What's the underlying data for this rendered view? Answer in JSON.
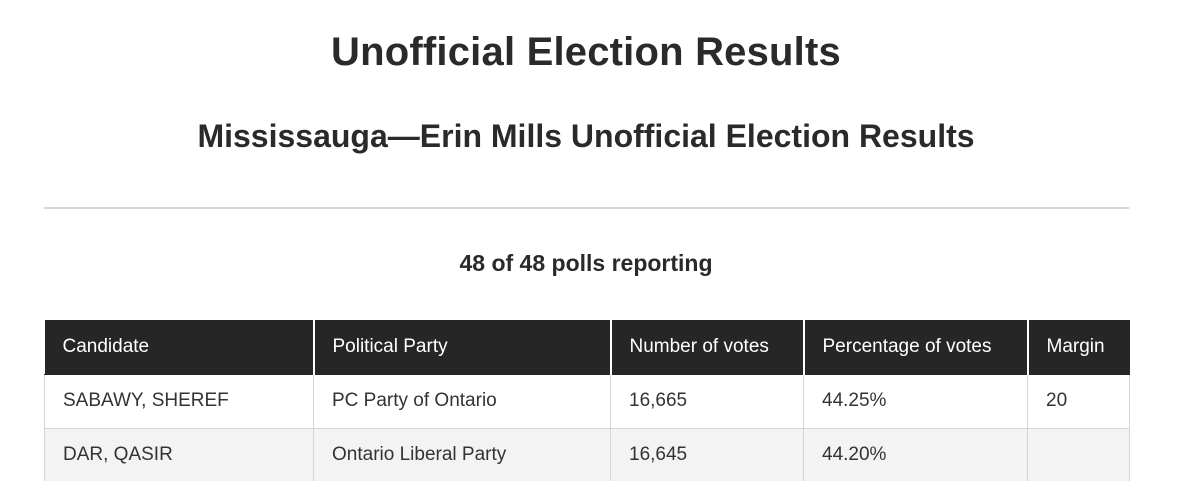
{
  "header": {
    "title": "Unofficial Election Results",
    "subtitle": "Mississauga—Erin Mills Unofficial Election Results"
  },
  "polls": {
    "status": "48 of 48 polls reporting"
  },
  "table": {
    "columns": [
      "Candidate",
      "Political Party",
      "Number of votes",
      "Percentage of votes",
      "Margin"
    ],
    "rows": [
      {
        "candidate": "SABAWY, SHEREF",
        "party": "PC Party of Ontario",
        "votes": "16,665",
        "percentage": "44.25%",
        "margin": "20"
      },
      {
        "candidate": "DAR, QASIR",
        "party": "Ontario Liberal Party",
        "votes": "16,645",
        "percentage": "44.20%",
        "margin": ""
      }
    ]
  },
  "colors": {
    "header_background": "#262626",
    "header_text": "#ffffff",
    "alt_row_background": "#f3f3f3",
    "divider": "#d6d6d6"
  }
}
